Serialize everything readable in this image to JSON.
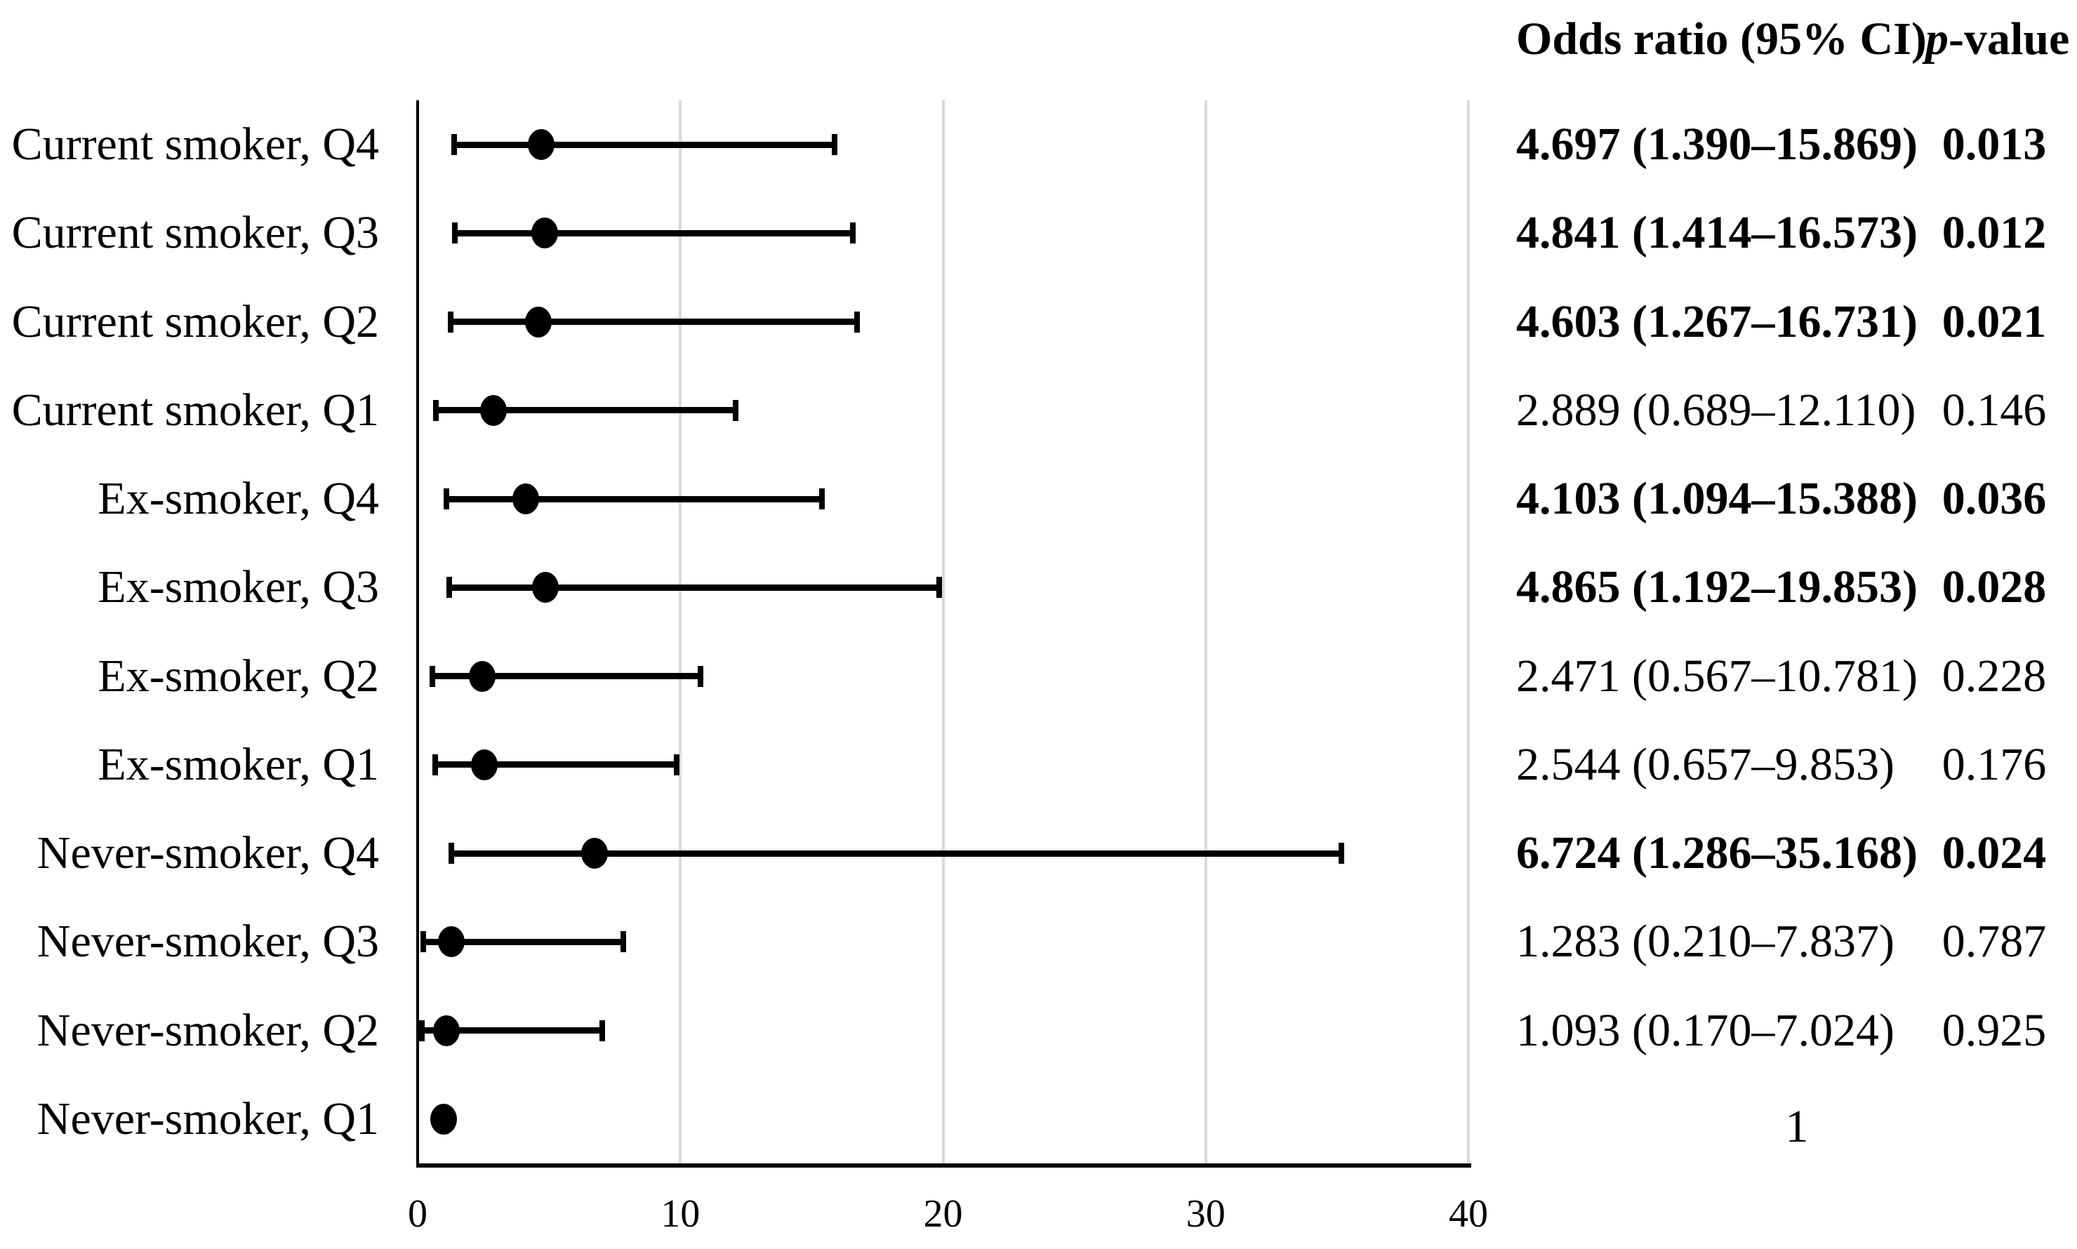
{
  "headers": {
    "or_ci": "Odds ratio (95% CI)",
    "p_italic": "p",
    "p_rest": "-value"
  },
  "colors": {
    "text": "#000000",
    "axis": "#000000",
    "marker": "#000000",
    "gridline": "#d9d9d9",
    "background": "#ffffff"
  },
  "chart_data": {
    "type": "scatter",
    "subtype": "forest-plot",
    "title": "",
    "xlabel": "",
    "ylabel": "",
    "xlim": [
      0,
      40
    ],
    "x_ticks": [
      0,
      10,
      20,
      30,
      40
    ],
    "gridlines_at": [
      10,
      20,
      30,
      40
    ],
    "grid": "vertical-only",
    "legend": "none",
    "columns": [
      "Odds ratio (95% CI)",
      "p-value"
    ],
    "rows": [
      {
        "label": "Current smoker, Q4",
        "or": 4.697,
        "ci_low": 1.39,
        "ci_high": 15.869,
        "or_ci_text": "4.697 (1.390–15.869)",
        "p_text": "0.013",
        "significant": true,
        "reference": false
      },
      {
        "label": "Current smoker, Q3",
        "or": 4.841,
        "ci_low": 1.414,
        "ci_high": 16.573,
        "or_ci_text": "4.841 (1.414–16.573)",
        "p_text": "0.012",
        "significant": true,
        "reference": false
      },
      {
        "label": "Current smoker, Q2",
        "or": 4.603,
        "ci_low": 1.267,
        "ci_high": 16.731,
        "or_ci_text": "4.603 (1.267–16.731)",
        "p_text": "0.021",
        "significant": true,
        "reference": false
      },
      {
        "label": "Current smoker, Q1",
        "or": 2.889,
        "ci_low": 0.689,
        "ci_high": 12.11,
        "or_ci_text": "2.889 (0.689–12.110)",
        "p_text": "0.146",
        "significant": false,
        "reference": false
      },
      {
        "label": "Ex-smoker, Q4",
        "or": 4.103,
        "ci_low": 1.094,
        "ci_high": 15.388,
        "or_ci_text": "4.103 (1.094–15.388)",
        "p_text": "0.036",
        "significant": true,
        "reference": false
      },
      {
        "label": "Ex-smoker, Q3",
        "or": 4.865,
        "ci_low": 1.192,
        "ci_high": 19.853,
        "or_ci_text": "4.865 (1.192–19.853)",
        "p_text": "0.028",
        "significant": true,
        "reference": false
      },
      {
        "label": "Ex-smoker, Q2",
        "or": 2.471,
        "ci_low": 0.567,
        "ci_high": 10.781,
        "or_ci_text": "2.471 (0.567–10.781)",
        "p_text": "0.228",
        "significant": false,
        "reference": false
      },
      {
        "label": "Ex-smoker, Q1",
        "or": 2.544,
        "ci_low": 0.657,
        "ci_high": 9.853,
        "or_ci_text": "2.544 (0.657–9.853)",
        "p_text": "0.176",
        "significant": false,
        "reference": false
      },
      {
        "label": "Never-smoker, Q4",
        "or": 6.724,
        "ci_low": 1.286,
        "ci_high": 35.168,
        "or_ci_text": "6.724 (1.286–35.168)",
        "p_text": "0.024",
        "significant": true,
        "reference": false
      },
      {
        "label": "Never-smoker, Q3",
        "or": 1.283,
        "ci_low": 0.21,
        "ci_high": 7.837,
        "or_ci_text": "1.283 (0.210–7.837)",
        "p_text": "0.787",
        "significant": false,
        "reference": false
      },
      {
        "label": "Never-smoker, Q2",
        "or": 1.093,
        "ci_low": 0.17,
        "ci_high": 7.024,
        "or_ci_text": "1.093 (0.170–7.024)",
        "p_text": "0.925",
        "significant": false,
        "reference": false
      },
      {
        "label": "Never-smoker, Q1",
        "or": 1,
        "ci_low": null,
        "ci_high": null,
        "or_ci_text": "1",
        "p_text": "",
        "significant": false,
        "reference": true
      }
    ]
  }
}
